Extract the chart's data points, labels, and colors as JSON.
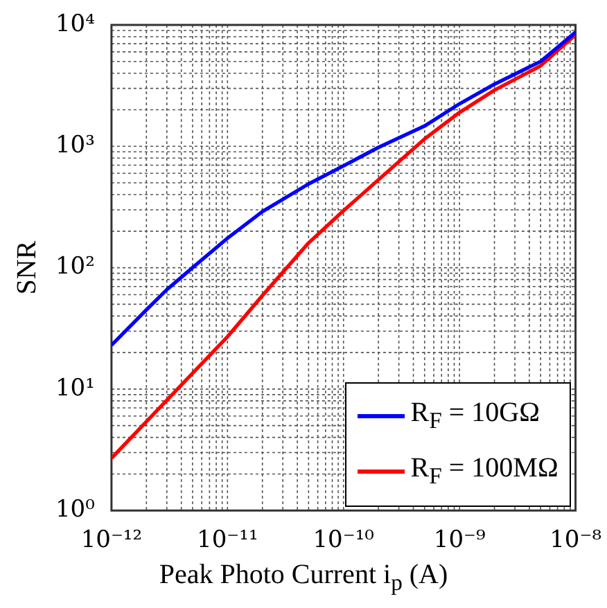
{
  "chart_data": {
    "type": "line",
    "xlabel": "Peak Photo Current i$_{p}$ (A)",
    "ylabel": "SNR",
    "log": "xy",
    "grid": true,
    "legend": "bottom right",
    "xlim": [
      1e-12,
      1e-08
    ],
    "ylim": [
      1,
      10000
    ],
    "xticks": [
      {
        "value": 1e-12,
        "label": "10⁻¹²"
      },
      {
        "value": 1e-11,
        "label": "10⁻¹¹"
      },
      {
        "value": 1e-10,
        "label": "10⁻¹⁰"
      },
      {
        "value": 1e-09,
        "label": "10⁻⁹"
      },
      {
        "value": 1e-08,
        "label": "10⁻⁸"
      }
    ],
    "yticks": [
      {
        "value": 1,
        "label": "10⁰"
      },
      {
        "value": 10,
        "label": "10¹"
      },
      {
        "value": 100,
        "label": "10²"
      },
      {
        "value": 1000,
        "label": "10³"
      },
      {
        "value": 10000,
        "label": "10⁴"
      }
    ],
    "series": [
      {
        "name": "R$_{F}$ = 10GΩ",
        "color": "#0000ff",
        "x": [
          1e-12,
          2e-12,
          3e-12,
          5e-12,
          1e-11,
          2e-11,
          5e-11,
          1e-10,
          2e-10,
          5e-10,
          1e-09,
          2e-09,
          5e-09,
          1e-08
        ],
        "values": [
          23,
          45,
          66,
          100,
          175,
          290,
          490,
          690,
          980,
          1470,
          2240,
          3250,
          5000,
          8700
        ]
      },
      {
        "name": "R$_{F}$ = 100MΩ",
        "color": "#ff0000",
        "x": [
          1e-12,
          1e-11,
          2e-11,
          5e-11,
          1e-10,
          2e-10,
          5e-10,
          1e-09,
          2e-09,
          5e-09,
          1e-08
        ],
        "values": [
          2.7,
          27,
          59,
          160,
          295,
          530,
          1150,
          1900,
          2900,
          4600,
          8300
        ]
      }
    ]
  }
}
